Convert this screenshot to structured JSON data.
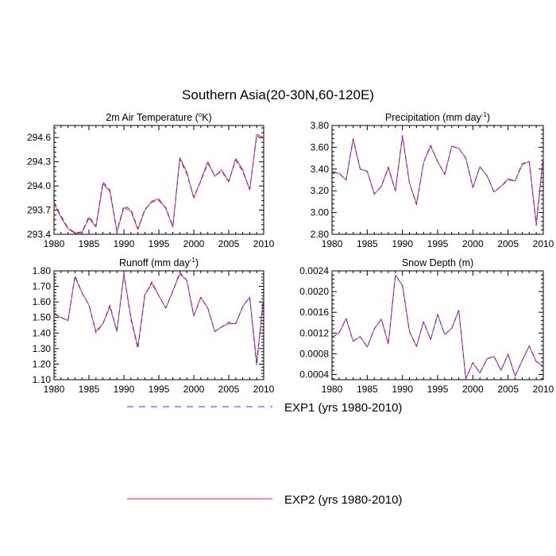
{
  "figure_title": "Southern Asia(20-30N,60-120E)",
  "colors": {
    "exp1": "#3333ff",
    "exp2": "#ff2222",
    "axis": "#000000"
  },
  "legend": [
    {
      "label": "EXP1 (yrs 1980-2010)",
      "style": "dashed",
      "color": "#3333ff"
    },
    {
      "label": "EXP2 (yrs 1980-2010)",
      "style": "solid",
      "color": "#ff2222"
    }
  ],
  "chart_data": [
    {
      "type": "line",
      "title": "2m Air Temperature (°K)",
      "title_base": "2m Air Temperature (",
      "title_sup": "o",
      "title_end": "K)",
      "x": [
        1980,
        1981,
        1982,
        1983,
        1984,
        1985,
        1986,
        1987,
        1988,
        1989,
        1990,
        1991,
        1992,
        1993,
        1994,
        1995,
        1996,
        1997,
        1998,
        1999,
        2000,
        2001,
        2002,
        2003,
        2004,
        2005,
        2006,
        2007,
        2008,
        2009,
        2010
      ],
      "xlim": [
        1980,
        2010
      ],
      "xticks": [
        "1980",
        "1985",
        "1990",
        "1995",
        "2000",
        "2005",
        "2010"
      ],
      "ylim": [
        293.4,
        294.75
      ],
      "yticks": [
        "293.4",
        "293.7",
        "294.0",
        "294.3",
        "294.6"
      ],
      "series": [
        {
          "name": "EXP1 (yrs 1980-2010)",
          "values": [
            293.8,
            293.63,
            293.48,
            293.42,
            293.43,
            293.62,
            293.5,
            294.05,
            293.95,
            293.44,
            293.75,
            293.71,
            293.47,
            293.71,
            293.8,
            293.82,
            293.73,
            293.5,
            294.33,
            294.15,
            293.86,
            294.06,
            294.28,
            294.13,
            294.18,
            294.06,
            294.32,
            294.18,
            293.96,
            294.62,
            294.58
          ]
        },
        {
          "name": "EXP2 (yrs 1980-2010)",
          "values": [
            293.78,
            293.61,
            293.47,
            293.41,
            293.42,
            293.6,
            293.49,
            294.03,
            293.93,
            293.43,
            293.73,
            293.69,
            293.46,
            293.7,
            293.81,
            293.84,
            293.72,
            293.49,
            294.35,
            294.17,
            293.85,
            294.07,
            294.3,
            294.12,
            294.2,
            294.05,
            294.34,
            294.2,
            293.95,
            294.64,
            294.6
          ]
        }
      ]
    },
    {
      "type": "line",
      "title": "Precipitation (mm day-1)",
      "title_base": "Precipitation (mm day",
      "title_sup": "-1",
      "title_end": ")",
      "x": [
        1980,
        1981,
        1982,
        1983,
        1984,
        1985,
        1986,
        1987,
        1988,
        1989,
        1990,
        1991,
        1992,
        1993,
        1994,
        1995,
        1996,
        1997,
        1998,
        1999,
        2000,
        2001,
        2002,
        2003,
        2004,
        2005,
        2006,
        2007,
        2008,
        2009,
        2010
      ],
      "xlim": [
        1980,
        2010
      ],
      "xticks": [
        "1980",
        "1985",
        "1990",
        "1995",
        "2000",
        "2005",
        "2010"
      ],
      "ylim": [
        2.8,
        3.8
      ],
      "yticks": [
        "2.80",
        "3.00",
        "3.20",
        "3.40",
        "3.60",
        "3.80"
      ],
      "series": [
        {
          "name": "EXP1 (yrs 1980-2010)",
          "values": [
            3.38,
            3.36,
            3.3,
            3.68,
            3.4,
            3.38,
            3.17,
            3.24,
            3.42,
            3.2,
            3.71,
            3.27,
            3.07,
            3.46,
            3.62,
            3.47,
            3.35,
            3.61,
            3.59,
            3.5,
            3.23,
            3.42,
            3.34,
            3.19,
            3.24,
            3.3,
            3.29,
            3.45,
            3.47,
            2.88,
            3.5
          ]
        },
        {
          "name": "EXP2 (yrs 1980-2010)",
          "values": [
            3.37,
            3.36,
            3.3,
            3.67,
            3.4,
            3.38,
            3.17,
            3.24,
            3.41,
            3.2,
            3.7,
            3.27,
            3.08,
            3.46,
            3.61,
            3.47,
            3.35,
            3.61,
            3.59,
            3.5,
            3.23,
            3.42,
            3.34,
            3.19,
            3.24,
            3.31,
            3.29,
            3.44,
            3.47,
            2.9,
            3.52
          ]
        }
      ]
    },
    {
      "type": "line",
      "title": "Runoff (mm day-1)",
      "title_base": "Runoff (mm day",
      "title_sup": "-1",
      "title_end": ")",
      "x": [
        1980,
        1981,
        1982,
        1983,
        1984,
        1985,
        1986,
        1987,
        1988,
        1989,
        1990,
        1991,
        1992,
        1993,
        1994,
        1995,
        1996,
        1997,
        1998,
        1999,
        2000,
        2001,
        2002,
        2003,
        2004,
        2005,
        2006,
        2007,
        2008,
        2009,
        2010
      ],
      "xlim": [
        1980,
        2010
      ],
      "xticks": [
        "1980",
        "1985",
        "1990",
        "1995",
        "2000",
        "2005",
        "2010"
      ],
      "ylim": [
        1.1,
        1.8
      ],
      "yticks": [
        "1.10",
        "1.20",
        "1.30",
        "1.40",
        "1.50",
        "1.60",
        "1.70",
        "1.80"
      ],
      "series": [
        {
          "name": "EXP1 (yrs 1980-2010)",
          "values": [
            1.53,
            1.5,
            1.48,
            1.77,
            1.66,
            1.58,
            1.4,
            1.46,
            1.58,
            1.41,
            1.78,
            1.49,
            1.3,
            1.64,
            1.73,
            1.64,
            1.56,
            1.67,
            1.79,
            1.74,
            1.51,
            1.63,
            1.56,
            1.41,
            1.44,
            1.47,
            1.46,
            1.57,
            1.63,
            1.19,
            1.65
          ]
        },
        {
          "name": "EXP2 (yrs 1980-2010)",
          "values": [
            1.52,
            1.5,
            1.48,
            1.76,
            1.66,
            1.58,
            1.41,
            1.46,
            1.57,
            1.41,
            1.78,
            1.5,
            1.31,
            1.65,
            1.72,
            1.64,
            1.56,
            1.67,
            1.78,
            1.74,
            1.51,
            1.63,
            1.56,
            1.41,
            1.44,
            1.46,
            1.46,
            1.57,
            1.63,
            1.21,
            1.63
          ]
        }
      ]
    },
    {
      "type": "line",
      "title": "Snow Depth (m)",
      "title_base": "Snow Depth (m)",
      "title_sup": "",
      "title_end": "",
      "x": [
        1980,
        1981,
        1982,
        1983,
        1984,
        1985,
        1986,
        1987,
        1988,
        1989,
        1990,
        1991,
        1992,
        1993,
        1994,
        1995,
        1996,
        1997,
        1998,
        1999,
        2000,
        2001,
        2002,
        2003,
        2004,
        2005,
        2006,
        2007,
        2008,
        2009,
        2010
      ],
      "xlim": [
        1980,
        2010
      ],
      "xticks": [
        "1980",
        "1985",
        "1990",
        "1995",
        "2000",
        "2005",
        "2010"
      ],
      "ylim": [
        0.0003,
        0.0024
      ],
      "yticks": [
        "0.0004",
        "0.0008",
        "0.0012",
        "0.0016",
        "0.0020",
        "0.0024"
      ],
      "series": [
        {
          "name": "EXP1 (yrs 1980-2010)",
          "values": [
            0.00112,
            0.0012,
            0.00148,
            0.00104,
            0.00113,
            0.00093,
            0.00128,
            0.00147,
            0.00099,
            0.00232,
            0.00212,
            0.00123,
            0.00094,
            0.00142,
            0.00107,
            0.00156,
            0.00117,
            0.00129,
            0.00164,
            0.00032,
            0.00063,
            0.00043,
            0.0007,
            0.00075,
            0.00048,
            0.00079,
            0.00037,
            0.00067,
            0.00095,
            0.00065,
            0.00056
          ]
        },
        {
          "name": "EXP2 (yrs 1980-2010)",
          "values": [
            0.00112,
            0.0012,
            0.00148,
            0.00104,
            0.00113,
            0.00093,
            0.00128,
            0.00147,
            0.00099,
            0.00232,
            0.00212,
            0.00123,
            0.00094,
            0.00142,
            0.00107,
            0.00156,
            0.00117,
            0.00129,
            0.00164,
            0.00032,
            0.00063,
            0.00043,
            0.0007,
            0.00075,
            0.00048,
            0.00079,
            0.00037,
            0.00067,
            0.00095,
            0.00065,
            0.00056
          ]
        }
      ]
    }
  ]
}
